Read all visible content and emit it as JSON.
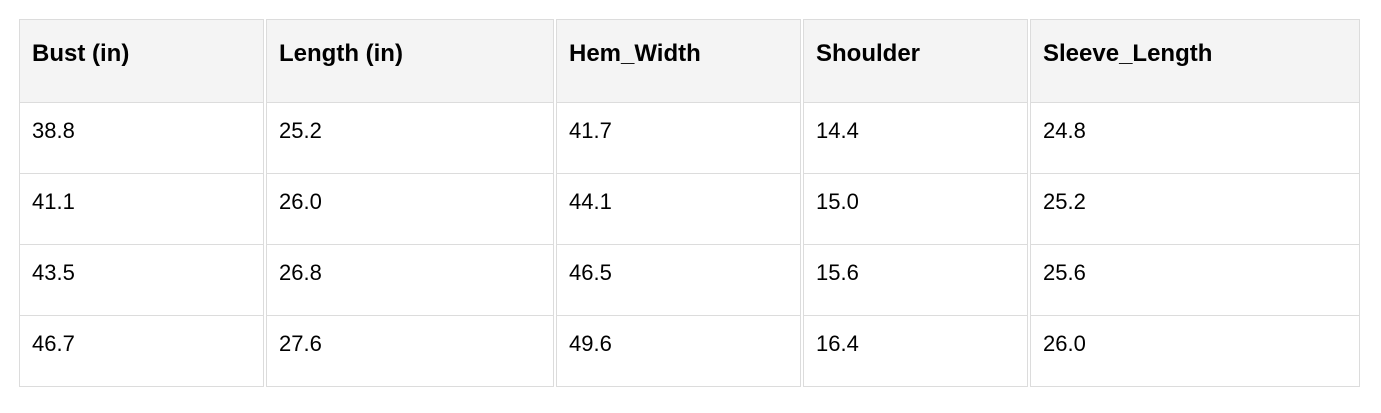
{
  "table": {
    "headers": [
      "Bust (in)",
      "Length (in)",
      "Hem_Width",
      "Shoulder",
      "Sleeve_Length"
    ],
    "rows": [
      [
        "38.8",
        "25.2",
        "41.7",
        "14.4",
        "24.8"
      ],
      [
        "41.1",
        "26.0",
        "44.1",
        "15.0",
        "25.2"
      ],
      [
        "43.5",
        "26.8",
        "46.5",
        "15.6",
        "25.6"
      ],
      [
        "46.7",
        "27.6",
        "49.6",
        "16.4",
        "26.0"
      ]
    ]
  },
  "colors": {
    "header_bg": "#f4f4f4",
    "border": "#dcdcdc"
  }
}
